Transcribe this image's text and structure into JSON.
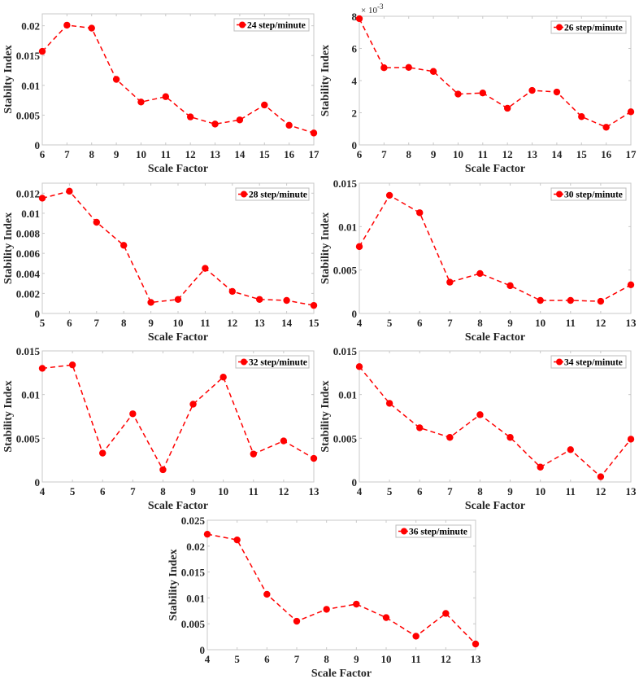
{
  "chart_data": [
    {
      "type": "line",
      "legend": "24 step/minute",
      "legend_position": "top-right",
      "xlabel": "Scale Factor",
      "ylabel": "Stabilty Index",
      "x": [
        6,
        7,
        8,
        9,
        10,
        11,
        12,
        13,
        14,
        15,
        16,
        17
      ],
      "values": [
        0.0157,
        0.0201,
        0.0196,
        0.011,
        0.0072,
        0.0081,
        0.0047,
        0.0035,
        0.0042,
        0.0067,
        0.0033,
        0.002
      ],
      "xlim": [
        6,
        17
      ],
      "ylim": [
        0,
        0.022
      ],
      "xticks": [
        "6",
        "7",
        "8",
        "9",
        "10",
        "11",
        "12",
        "13",
        "14",
        "15",
        "16",
        "17"
      ],
      "yticks": [
        0,
        0.005,
        0.01,
        0.015,
        0.02
      ],
      "ytick_labels": [
        "0",
        "0.005",
        "0.01",
        "0.015",
        "0.02"
      ],
      "exponent_label": "",
      "grid": false,
      "color": "#ff0000",
      "line_style": "dashed",
      "marker": "circle"
    },
    {
      "type": "line",
      "legend": "26 step/minute",
      "legend_position": "top-right",
      "xlabel": "Scale Factor",
      "ylabel": "Stability Index",
      "x": [
        6,
        7,
        8,
        9,
        10,
        11,
        12,
        13,
        14,
        15,
        16,
        17
      ],
      "values": [
        0.00785,
        0.0048,
        0.00482,
        0.00457,
        0.00316,
        0.00323,
        0.00228,
        0.00339,
        0.00329,
        0.00176,
        0.0011,
        0.00206
      ],
      "xlim": [
        6,
        17
      ],
      "ylim": [
        0,
        0.008
      ],
      "xticks": [
        "6",
        "7",
        "8",
        "9",
        "10",
        "11",
        "12",
        "13",
        "14",
        "15",
        "16",
        "17"
      ],
      "yticks": [
        0,
        0.002,
        0.004,
        0.006,
        0.008
      ],
      "ytick_labels": [
        "0",
        "2",
        "4",
        "6",
        "8"
      ],
      "exponent_label": "× 10-3",
      "grid": false,
      "color": "#ff0000",
      "line_style": "dashed",
      "marker": "circle"
    },
    {
      "type": "line",
      "legend": "28 step/minute",
      "legend_position": "top-right",
      "xlabel": "Scale Factor",
      "ylabel": "Stability Index",
      "x": [
        5,
        6,
        7,
        8,
        9,
        10,
        11,
        12,
        13,
        14,
        15
      ],
      "values": [
        0.0115,
        0.0122,
        0.0091,
        0.0068,
        0.0011,
        0.0014,
        0.0045,
        0.0022,
        0.0014,
        0.0013,
        0.0008
      ],
      "xlim": [
        5,
        15
      ],
      "ylim": [
        0,
        0.013
      ],
      "xticks": [
        "5",
        "6",
        "7",
        "8",
        "9",
        "10",
        "11",
        "12",
        "13",
        "14",
        "15"
      ],
      "yticks": [
        0,
        0.002,
        0.004,
        0.006,
        0.008,
        0.01,
        0.012
      ],
      "ytick_labels": [
        "0",
        "0.002",
        "0.004",
        "0.006",
        "0.008",
        "0.01",
        "0.012"
      ],
      "exponent_label": "",
      "grid": false,
      "color": "#ff0000",
      "line_style": "dashed",
      "marker": "circle"
    },
    {
      "type": "line",
      "legend": "30 step/minute",
      "legend_position": "top-right",
      "xlabel": "Scale Factor",
      "ylabel": "Stability Index",
      "x": [
        4,
        5,
        6,
        7,
        8,
        9,
        10,
        11,
        12,
        13
      ],
      "values": [
        0.0077,
        0.0136,
        0.0116,
        0.0036,
        0.0046,
        0.0032,
        0.0015,
        0.0015,
        0.0014,
        0.0033
      ],
      "xlim": [
        4,
        13
      ],
      "ylim": [
        0,
        0.015
      ],
      "xticks": [
        "4",
        "5",
        "6",
        "7",
        "8",
        "9",
        "10",
        "11",
        "12",
        "13"
      ],
      "yticks": [
        0,
        0.005,
        0.01,
        0.015
      ],
      "ytick_labels": [
        "0",
        "0.005",
        "0.01",
        "0.015"
      ],
      "exponent_label": "",
      "grid": false,
      "color": "#ff0000",
      "line_style": "dashed",
      "marker": "circle"
    },
    {
      "type": "line",
      "legend": "32 step/minute",
      "legend_position": "top-right",
      "xlabel": "Scale Factor",
      "ylabel": "Stability Index",
      "x": [
        4,
        5,
        6,
        7,
        8,
        9,
        10,
        11,
        12,
        13
      ],
      "values": [
        0.013,
        0.0134,
        0.0033,
        0.0078,
        0.0014,
        0.0089,
        0.012,
        0.0032,
        0.0047,
        0.0027
      ],
      "xlim": [
        4,
        13
      ],
      "ylim": [
        0,
        0.015
      ],
      "xticks": [
        "4",
        "5",
        "6",
        "7",
        "8",
        "9",
        "10",
        "11",
        "12",
        "13"
      ],
      "yticks": [
        0,
        0.005,
        0.01,
        0.015
      ],
      "ytick_labels": [
        "0",
        "0.005",
        "0.01",
        "0.015"
      ],
      "exponent_label": "",
      "grid": false,
      "color": "#ff0000",
      "line_style": "dashed",
      "marker": "circle"
    },
    {
      "type": "line",
      "legend": "34 step/minute",
      "legend_position": "top-right",
      "xlabel": "Scale Factor",
      "ylabel": "Stability Index",
      "x": [
        4,
        5,
        6,
        7,
        8,
        9,
        10,
        11,
        12,
        13
      ],
      "values": [
        0.0132,
        0.009,
        0.0062,
        0.0051,
        0.0077,
        0.0051,
        0.0017,
        0.0037,
        0.0006,
        0.0049
      ],
      "xlim": [
        4,
        13
      ],
      "ylim": [
        0,
        0.015
      ],
      "xticks": [
        "4",
        "5",
        "6",
        "7",
        "8",
        "9",
        "10",
        "11",
        "12",
        "13"
      ],
      "yticks": [
        0,
        0.005,
        0.01,
        0.015
      ],
      "ytick_labels": [
        "0",
        "0.005",
        "0.01",
        "0.015"
      ],
      "exponent_label": "",
      "grid": false,
      "color": "#ff0000",
      "line_style": "dashed",
      "marker": "circle"
    },
    {
      "type": "line",
      "legend": "36 step/minute",
      "legend_position": "top-right",
      "xlabel": "Scale Factor",
      "ylabel": "Stability Index",
      "x": [
        4,
        5,
        6,
        7,
        8,
        9,
        10,
        11,
        12,
        13
      ],
      "values": [
        0.0223,
        0.0212,
        0.0107,
        0.0055,
        0.0078,
        0.0088,
        0.0062,
        0.0026,
        0.007,
        0.0011
      ],
      "xlim": [
        4,
        13
      ],
      "ylim": [
        0,
        0.025
      ],
      "xticks": [
        "4",
        "5",
        "6",
        "7",
        "8",
        "9",
        "10",
        "11",
        "12",
        "13"
      ],
      "yticks": [
        0,
        0.005,
        0.01,
        0.015,
        0.02,
        0.025
      ],
      "ytick_labels": [
        "0",
        "0.005",
        "0.01",
        "0.015",
        "0.02",
        "0.025"
      ],
      "exponent_label": "",
      "grid": false,
      "color": "#ff0000",
      "line_style": "dashed",
      "marker": "circle"
    }
  ]
}
